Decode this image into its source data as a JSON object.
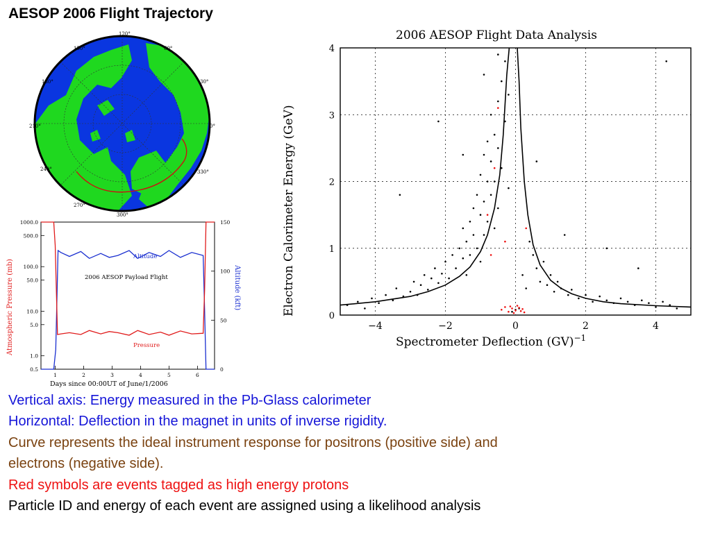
{
  "slide_title": "AESOP 2006 Flight Trajectory",
  "colors": {
    "land": "#1fd81f",
    "ocean": "#0a36e0",
    "trajectory": "#cc1111",
    "pressure": "#e01a1a",
    "altitude": "#1a2fd0",
    "protons": "#ee1111"
  },
  "map": {
    "longitude_labels": [
      "120°",
      "150°",
      "60°",
      "180°",
      "30°",
      "210°",
      "0°",
      "240°",
      "330°",
      "270°",
      "300°"
    ]
  },
  "captions": [
    {
      "text": "Vertical axis: Energy measured in the Pb-Glass calorimeter",
      "color": "blue"
    },
    {
      "text": "Horizontal: Deflection in the magnet in units of inverse rigidity.",
      "color": "blue"
    },
    {
      "text": "Curve represents the ideal instrument response for positrons (positive side) and",
      "color": "brown"
    },
    {
      "text": "electrons (negative side).",
      "color": "brown"
    },
    {
      "text": "Red symbols are events tagged as high energy protons",
      "color": "red"
    },
    {
      "text": "Particle ID and energy of each event are assigned using a likelihood analysis",
      "color": "black"
    }
  ],
  "chart_data": [
    {
      "type": "line",
      "title": "2006 AESOP Payload Flight",
      "xlabel": "Days since 00:00UT of June/1/2006",
      "ylabel": "Atmospheric Pressure (mb)",
      "y2label": "Altitude (kft)",
      "xlim": [
        0.5,
        6.6
      ],
      "ylim": [
        0.5,
        1000
      ],
      "y_scale": "log",
      "y2lim": [
        0,
        150
      ],
      "x_ticks": [
        "1",
        "2",
        "3",
        "4",
        "5",
        "6"
      ],
      "y_ticks": [
        "1000.0",
        "500.0",
        "100.0",
        "50.0",
        "10.0",
        "5.0",
        "1.0",
        "0.5"
      ],
      "y_tick_values": [
        1000,
        500,
        100,
        50,
        10,
        5,
        1,
        0.5
      ],
      "y2_ticks": [
        "150",
        "100",
        "50",
        "0"
      ],
      "y2_tick_values": [
        150,
        100,
        50,
        0
      ],
      "series": [
        {
          "name": "Altitude",
          "axis": "right",
          "x": [
            0.5,
            0.95,
            1.02,
            1.1,
            1.2,
            1.5,
            1.9,
            2.2,
            2.6,
            2.9,
            3.2,
            3.6,
            3.9,
            4.3,
            4.7,
            5.0,
            5.4,
            5.8,
            6.2,
            6.25,
            6.3,
            6.6
          ],
          "y": [
            0,
            0,
            20,
            121,
            119,
            115,
            120,
            113,
            118,
            114,
            116,
            121,
            113,
            119,
            115,
            121,
            114,
            119,
            116,
            60,
            0,
            0
          ]
        },
        {
          "name": "Pressure",
          "axis": "left",
          "x": [
            0.5,
            0.95,
            1.0,
            1.08,
            1.2,
            1.5,
            1.9,
            2.2,
            2.6,
            2.9,
            3.2,
            3.6,
            3.9,
            4.3,
            4.7,
            5.0,
            5.4,
            5.8,
            6.2,
            6.25,
            6.3,
            6.6
          ],
          "y": [
            1000,
            1000,
            300,
            3.0,
            3.1,
            3.3,
            3.0,
            3.7,
            3.1,
            3.5,
            3.3,
            2.9,
            3.7,
            3.0,
            3.4,
            2.9,
            3.6,
            3.1,
            3.2,
            30,
            1000,
            1000
          ]
        }
      ]
    },
    {
      "type": "scatter",
      "title": "2006 AESOP Flight Data Analysis",
      "xlabel": "Spectrometer Deflection (GV)",
      "xlabel_sup": "−1",
      "ylabel": "Electron Calorimeter Energy (GeV)",
      "xlim": [
        -5,
        5
      ],
      "ylim": [
        0,
        4
      ],
      "grid": true,
      "x_ticks": [
        "−4",
        "−2",
        "0",
        "2",
        "4"
      ],
      "x_tick_values": [
        -4,
        -2,
        0,
        2,
        4
      ],
      "y_ticks": [
        "0",
        "1",
        "2",
        "3",
        "4"
      ],
      "y_tick_values": [
        0,
        1,
        2,
        3,
        4
      ],
      "response_curve": {
        "x": [
          -5.0,
          -4.0,
          -3.0,
          -2.5,
          -2.0,
          -1.6,
          -1.3,
          -1.0,
          -0.8,
          -0.6,
          -0.45,
          -0.35,
          -0.25,
          -0.18,
          0.05,
          0.1,
          0.15,
          0.25,
          0.35,
          0.5,
          0.7,
          1.0,
          1.3,
          1.6,
          2.0,
          2.5,
          3.0,
          4.0,
          5.0
        ],
        "y": [
          0.15,
          0.2,
          0.28,
          0.35,
          0.45,
          0.58,
          0.72,
          0.95,
          1.2,
          1.6,
          2.1,
          2.7,
          3.6,
          4.0,
          4.0,
          3.5,
          2.8,
          2.0,
          1.5,
          1.05,
          0.75,
          0.52,
          0.4,
          0.32,
          0.25,
          0.2,
          0.17,
          0.14,
          0.12
        ]
      },
      "series": [
        {
          "name": "events",
          "color": "#000000",
          "x": [
            -4.8,
            -4.5,
            -4.3,
            -4.1,
            -3.9,
            -3.7,
            -3.5,
            -3.4,
            -3.2,
            -3.0,
            -2.9,
            -2.8,
            -2.7,
            -2.6,
            -2.5,
            -2.4,
            -2.3,
            -2.2,
            -2.1,
            -2.0,
            -1.9,
            -1.8,
            -1.7,
            -1.6,
            -1.5,
            -1.5,
            -1.4,
            -1.4,
            -1.3,
            -1.3,
            -1.2,
            -1.2,
            -1.1,
            -1.1,
            -1.0,
            -1.0,
            -1.0,
            -0.9,
            -0.9,
            -0.9,
            -0.8,
            -0.8,
            -0.8,
            -0.7,
            -0.7,
            -0.7,
            -0.6,
            -0.6,
            -0.6,
            -0.5,
            -0.5,
            -0.5,
            -0.4,
            -0.4,
            -0.3,
            -0.3,
            -0.2,
            -0.2,
            -0.1,
            0.0,
            0.1,
            0.2,
            0.3,
            0.4,
            0.5,
            0.6,
            0.7,
            0.8,
            0.9,
            1.0,
            1.1,
            1.2,
            1.3,
            1.5,
            1.6,
            1.8,
            2.0,
            2.2,
            2.4,
            2.6,
            2.8,
            3.0,
            3.2,
            3.4,
            3.6,
            3.8,
            4.0,
            4.2,
            4.4,
            4.6,
            -3.3,
            -2.2,
            -1.5,
            -0.9,
            -0.5,
            0.6,
            1.4,
            2.6,
            3.5,
            4.3
          ],
          "y": [
            0.15,
            0.2,
            0.1,
            0.25,
            0.18,
            0.3,
            0.22,
            0.4,
            0.28,
            0.35,
            0.5,
            0.3,
            0.45,
            0.6,
            0.38,
            0.55,
            0.7,
            0.48,
            0.62,
            0.8,
            0.55,
            0.9,
            0.7,
            1.0,
            0.85,
            1.3,
            1.1,
            0.6,
            1.4,
            0.9,
            1.6,
            1.2,
            1.8,
            1.0,
            2.1,
            1.5,
            0.8,
            2.4,
            1.7,
            1.2,
            2.0,
            2.6,
            1.4,
            2.3,
            1.8,
            3.0,
            2.7,
            2.0,
            1.3,
            3.2,
            2.5,
            1.6,
            3.5,
            2.2,
            3.8,
            2.9,
            3.3,
            1.9,
            0.05,
            0.08,
            0.1,
            0.6,
            0.4,
            1.1,
            0.9,
            0.7,
            0.5,
            0.8,
            0.45,
            0.6,
            0.35,
            0.5,
            0.4,
            0.3,
            0.38,
            0.25,
            0.3,
            0.2,
            0.28,
            0.22,
            0.18,
            0.25,
            0.2,
            0.15,
            0.22,
            0.18,
            0.12,
            0.2,
            0.15,
            0.1,
            1.8,
            2.9,
            2.4,
            3.6,
            3.9,
            2.3,
            1.2,
            1.0,
            0.7,
            3.8
          ]
        },
        {
          "name": "protons",
          "color": "#ee1111",
          "x": [
            -0.4,
            -0.3,
            -0.2,
            -0.1,
            0.0,
            0.1,
            0.15,
            0.2,
            0.25,
            -0.15,
            -0.05,
            0.05,
            -0.8,
            -0.6,
            -0.5,
            -0.7,
            -0.3,
            0.3
          ],
          "y": [
            0.08,
            0.12,
            0.05,
            0.1,
            0.07,
            0.11,
            0.06,
            0.09,
            0.04,
            0.13,
            0.03,
            0.14,
            1.5,
            2.2,
            3.1,
            0.9,
            1.1,
            1.3
          ]
        }
      ]
    }
  ]
}
